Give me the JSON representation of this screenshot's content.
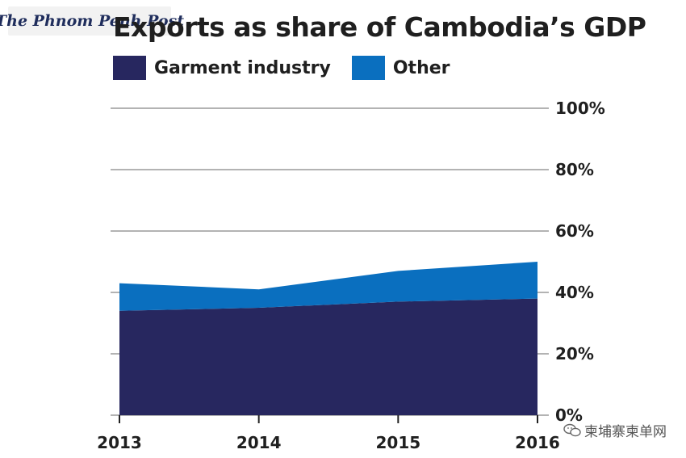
{
  "logo": {
    "text": "The Phnom Penh Post"
  },
  "watermark": {
    "text": "柬埔寨柬单网",
    "icon": "wechat-icon"
  },
  "colors": {
    "garment": "#27275f",
    "other": "#0a6fbf",
    "grid": "#b3b3b3",
    "text": "#1f1f1f"
  },
  "chart_data": {
    "type": "area",
    "stacked": true,
    "title": "Exports as share of Cambodia’s GDP",
    "x": [
      "2013",
      "2014",
      "2015",
      "2016"
    ],
    "series": [
      {
        "name": "Garment industry",
        "values": [
          34,
          35,
          37,
          38
        ]
      },
      {
        "name": "Other",
        "values": [
          9,
          6,
          10,
          12
        ]
      }
    ],
    "ylim": [
      0,
      100
    ],
    "yticks": [
      0,
      20,
      40,
      60,
      80,
      100
    ],
    "ytick_labels": [
      "0%",
      "20%",
      "40%",
      "60%",
      "80%",
      "100%"
    ],
    "y_axis_position": "right",
    "grid": true,
    "legend_position": "top-left"
  }
}
